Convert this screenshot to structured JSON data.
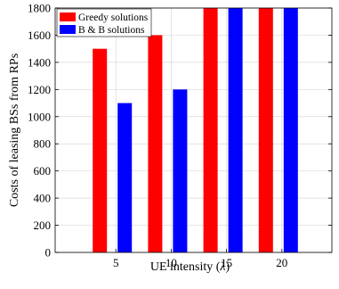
{
  "chart_data": {
    "type": "bar",
    "categories": [
      "5",
      "10",
      "15",
      "20"
    ],
    "series": [
      {
        "name": "Greedy solutions",
        "values": [
          1500,
          1600,
          1800,
          1800
        ],
        "color": "#ff0000"
      },
      {
        "name": "B & B solutions",
        "values": [
          1100,
          1200,
          1800,
          1800
        ],
        "color": "#0000ff"
      }
    ],
    "xlabel_prefix": "UE intensity (",
    "xlabel_symbol": "λ",
    "xlabel_suffix": ")",
    "ylabel": "Costs of leasing BSs from RPs",
    "ylim": [
      0,
      1800
    ],
    "yticks": [
      "0",
      "200",
      "400",
      "600",
      "800",
      "1000",
      "1200",
      "1400",
      "1600",
      "1800"
    ],
    "grid": true,
    "legend_position": "top-left"
  }
}
